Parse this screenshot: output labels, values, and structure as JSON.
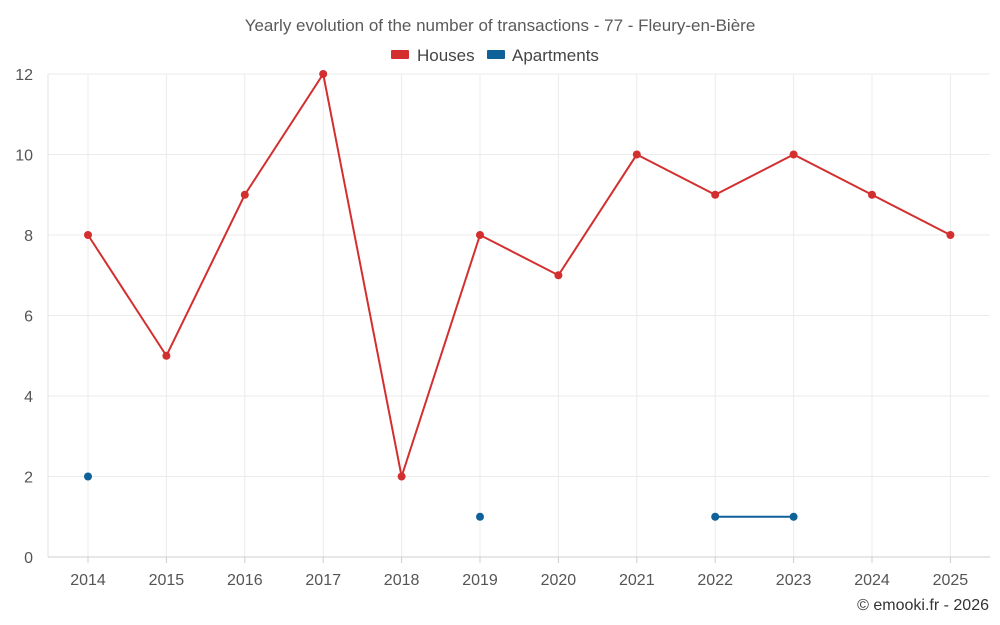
{
  "chart_data": {
    "type": "line",
    "title": "Yearly evolution of the number of transactions - 77 - Fleury-en-Bière",
    "categories": [
      "2014",
      "2015",
      "2016",
      "2017",
      "2018",
      "2019",
      "2020",
      "2021",
      "2022",
      "2023",
      "2024",
      "2025"
    ],
    "series": [
      {
        "name": "Houses",
        "color": "#d32f2f",
        "values": [
          8,
          5,
          9,
          12,
          2,
          8,
          7,
          10,
          9,
          10,
          9,
          8
        ]
      },
      {
        "name": "Apartments",
        "color": "#0e6199",
        "values": [
          2,
          null,
          null,
          null,
          null,
          1,
          null,
          null,
          1,
          1,
          null,
          null
        ]
      }
    ],
    "ylim": [
      0,
      12
    ],
    "yticks": [
      0,
      2,
      4,
      6,
      8,
      10,
      12
    ],
    "grid": true,
    "legend": "top-center",
    "xlabel": "",
    "ylabel": ""
  },
  "credit": "© emooki.fr - 2026"
}
